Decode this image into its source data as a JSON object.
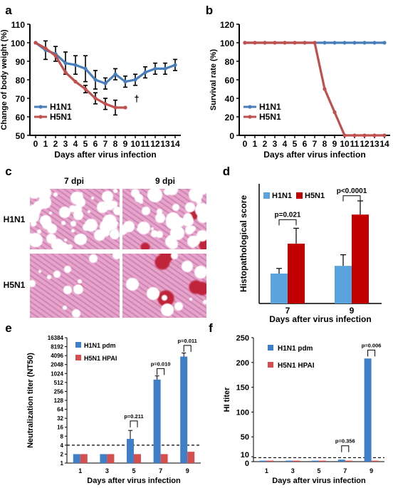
{
  "panels": {
    "a": "a",
    "b": "b",
    "c": "c",
    "d": "d",
    "e": "e",
    "f": "f"
  },
  "histology": {
    "col_7": "7 dpi",
    "col_9": "9 dpi",
    "row_h1n1": "H1N1",
    "row_h5n1": "H5N1"
  },
  "colors": {
    "h1n1": "#4a7ebb",
    "h5n1": "#c0504d",
    "h1n1_bar_d": "#5aa3dc",
    "h5n1_bar_d": "#c00000",
    "h1n1_bar_ef": "#3f7fc8",
    "h5n1_bar_ef": "#d64f4f",
    "tissue_pink": "#e8a3c8",
    "tissue_purple": "#9a4d9e"
  },
  "chart_data": [
    {
      "id": "a",
      "type": "line",
      "xlabel": "Days after virus infection",
      "ylabel": "Change of body weight (%)",
      "ylim": [
        50,
        110
      ],
      "yticks": [
        50,
        60,
        70,
        80,
        90,
        100,
        110
      ],
      "xticks": [
        0,
        1,
        2,
        3,
        4,
        5,
        6,
        7,
        8,
        9,
        10,
        11,
        12,
        13,
        14
      ],
      "legend": "lower-left",
      "annotation": "†",
      "series": [
        {
          "name": "H1N1",
          "x": [
            0,
            1,
            2,
            3,
            4,
            5,
            6,
            7,
            8,
            9,
            10,
            11,
            12,
            13,
            14
          ],
          "y": [
            100,
            96,
            94,
            89,
            88,
            86,
            80,
            78,
            83,
            79,
            80,
            84,
            86,
            86,
            88
          ],
          "err": [
            0,
            5,
            4,
            6,
            5,
            7,
            5,
            3,
            3,
            3,
            3,
            3,
            3,
            3,
            3
          ]
        },
        {
          "name": "H5N1",
          "x": [
            0,
            1,
            2,
            3,
            4,
            5,
            6,
            7,
            8,
            9
          ],
          "y": [
            100,
            97,
            93,
            84,
            79,
            75,
            70,
            67,
            65,
            65
          ],
          "err": [
            0,
            0,
            0,
            0,
            0,
            2,
            3,
            3,
            4,
            0
          ]
        }
      ]
    },
    {
      "id": "b",
      "type": "line",
      "xlabel": "Days after virus infection",
      "ylabel": "Survival rate (%)",
      "ylim": [
        0,
        120
      ],
      "yticks": [
        0,
        20,
        40,
        60,
        80,
        100,
        120
      ],
      "xticks": [
        0,
        1,
        2,
        3,
        4,
        5,
        6,
        7,
        8,
        9,
        10,
        11,
        12,
        13,
        14
      ],
      "legend": "lower-left",
      "series": [
        {
          "name": "H1N1",
          "x": [
            0,
            1,
            2,
            3,
            4,
            5,
            6,
            7,
            8,
            9,
            10,
            11,
            12,
            13,
            14
          ],
          "y": [
            100,
            100,
            100,
            100,
            100,
            100,
            100,
            100,
            100,
            100,
            100,
            100,
            100,
            100,
            100
          ]
        },
        {
          "name": "H5N1",
          "x": [
            0,
            1,
            2,
            3,
            4,
            5,
            6,
            7,
            8,
            9,
            10,
            11,
            12,
            13,
            14
          ],
          "y": [
            100,
            100,
            100,
            100,
            100,
            100,
            100,
            100,
            50,
            25,
            0,
            0,
            0,
            0,
            0
          ]
        }
      ]
    },
    {
      "id": "d",
      "type": "bar",
      "xlabel": "Days after virus infection",
      "ylabel": "Histopathological score",
      "ylim": [
        0,
        7
      ],
      "yticks": [],
      "categories": [
        "7",
        "9"
      ],
      "legend": "top-left",
      "series": [
        {
          "name": "H1N1",
          "values": [
            1.75,
            2.2
          ],
          "err": [
            0.3,
            0.65
          ]
        },
        {
          "name": "H5N1",
          "values": [
            3.5,
            5.2
          ],
          "err": [
            0.9,
            0.8
          ]
        }
      ],
      "annotations": [
        "p=0.021",
        "p<0.0001"
      ]
    },
    {
      "id": "e",
      "type": "bar",
      "xlabel": "Days after virus infection",
      "ylabel": "Neutralization titer (NT50)",
      "yscale": "log2",
      "ytick_labels": [
        "1",
        "2",
        "4",
        "8",
        "16",
        "32",
        "64",
        "128",
        "256",
        "512",
        "1024",
        "2048",
        "4096",
        "8192",
        "16384"
      ],
      "categories": [
        "1",
        "3",
        "5",
        "7",
        "9"
      ],
      "threshold": 4,
      "legend": "top-left",
      "series": [
        {
          "name": "H1N1 pdm",
          "values": [
            2,
            2,
            6.5,
            640,
            3800
          ],
          "err_upper": [
            2,
            2,
            12.5,
            850,
            5000
          ]
        },
        {
          "name": "H5N1 HPAI",
          "values": [
            2,
            2,
            2,
            2,
            2.4
          ]
        }
      ],
      "annotations": [
        "p=0.211",
        "p=0.010",
        "p=0.011"
      ]
    },
    {
      "id": "f",
      "type": "bar",
      "xlabel": "Days after virus infection",
      "ylabel": "HI titer",
      "ylim": [
        0,
        250
      ],
      "yticks": [
        0,
        10,
        50,
        100,
        150,
        200,
        250
      ],
      "categories": [
        "1",
        "3",
        "5",
        "7",
        "9"
      ],
      "threshold": 8,
      "legend": "top-left",
      "series": [
        {
          "name": "H1N1 pdm",
          "values": [
            2,
            2,
            2,
            4,
            208
          ]
        },
        {
          "name": "H5N1 HPAI",
          "values": [
            2,
            2,
            2,
            2,
            2
          ]
        }
      ],
      "annotations": [
        "p=0.356",
        "p=0.006"
      ]
    }
  ]
}
